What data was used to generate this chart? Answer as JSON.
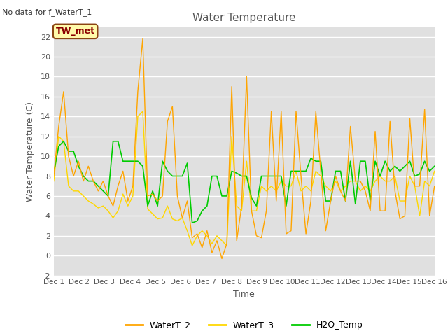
{
  "title": "Water Temperature",
  "xlabel": "Time",
  "ylabel": "Water Temperature (C)",
  "no_data_text": "No data for f_WaterT_1",
  "annotation_text": "TW_met",
  "ylim": [
    -2,
    23
  ],
  "yticks": [
    -2,
    0,
    2,
    4,
    6,
    8,
    10,
    12,
    14,
    16,
    18,
    20,
    22
  ],
  "xtick_labels": [
    "Dec 1",
    "Dec 2",
    "Dec 3",
    "Dec 4",
    "Dec 5",
    "Dec 6",
    "Dec 7",
    "Dec 8",
    "Dec 9",
    "Dec 10",
    "Dec 11",
    "Dec 12",
    "Dec 13",
    "Dec 14",
    "Dec 15",
    "Dec 16"
  ],
  "color_waterT2": "#FFA500",
  "color_waterT3": "#FFD700",
  "color_h2o": "#00CC00",
  "bg_color": "#E0E0E0",
  "legend_entries": [
    "WaterT_2",
    "WaterT_3",
    "H2O_Temp"
  ],
  "waterT2": [
    8.0,
    13.0,
    16.5,
    10.0,
    8.0,
    9.5,
    7.5,
    9.0,
    7.5,
    6.5,
    7.5,
    6.0,
    5.0,
    7.0,
    8.5,
    5.5,
    7.0,
    16.5,
    21.8,
    6.0,
    6.2,
    5.5,
    6.0,
    13.5,
    15.0,
    6.0,
    3.8,
    5.5,
    1.8,
    2.2,
    0.8,
    2.5,
    0.3,
    1.5,
    -0.3,
    1.2,
    17.0,
    1.5,
    5.0,
    18.0,
    4.5,
    2.0,
    1.8,
    4.5,
    14.5,
    5.5,
    14.5,
    2.2,
    2.5,
    14.5,
    8.0,
    2.2,
    5.5,
    14.5,
    8.5,
    2.5,
    5.5,
    8.0,
    6.5,
    5.5,
    13.0,
    7.5,
    7.5,
    6.5,
    4.5,
    12.5,
    4.5,
    4.5,
    13.5,
    6.5,
    3.7,
    4.0,
    13.8,
    7.0,
    7.0,
    14.7,
    4.0,
    7.0
  ],
  "waterT3": [
    7.5,
    12.0,
    11.5,
    7.0,
    6.5,
    6.5,
    6.0,
    5.5,
    5.2,
    4.8,
    5.0,
    4.5,
    3.8,
    4.5,
    6.2,
    5.0,
    6.0,
    14.0,
    14.5,
    4.7,
    4.2,
    3.7,
    3.8,
    5.0,
    3.7,
    3.5,
    3.8,
    2.5,
    1.0,
    2.0,
    2.5,
    2.0,
    1.2,
    2.0,
    1.5,
    1.0,
    12.0,
    5.0,
    4.5,
    9.5,
    4.5,
    4.5,
    7.0,
    6.5,
    7.0,
    6.5,
    7.5,
    7.0,
    7.0,
    8.5,
    6.5,
    7.0,
    6.5,
    8.5,
    8.0,
    7.0,
    6.5,
    7.5,
    6.5,
    7.0,
    7.5,
    7.5,
    6.5,
    7.0,
    6.5,
    7.5,
    8.0,
    7.5,
    7.5,
    8.0,
    5.5,
    5.5,
    8.0,
    7.0,
    4.0,
    7.5,
    7.0,
    8.5
  ],
  "h2oTemp": [
    8.3,
    11.0,
    11.5,
    10.5,
    10.5,
    9.0,
    8.0,
    7.5,
    7.5,
    7.0,
    6.5,
    6.0,
    11.5,
    11.5,
    9.5,
    9.5,
    9.5,
    9.5,
    9.0,
    5.0,
    6.5,
    5.0,
    9.5,
    8.5,
    8.0,
    8.0,
    8.0,
    9.3,
    3.3,
    3.5,
    4.5,
    5.0,
    8.0,
    8.0,
    6.0,
    6.0,
    8.5,
    8.3,
    8.0,
    8.0,
    5.8,
    5.0,
    8.0,
    8.0,
    8.0,
    8.0,
    8.0,
    5.0,
    8.5,
    8.5,
    8.5,
    8.5,
    9.8,
    9.5,
    9.5,
    5.5,
    5.5,
    8.5,
    8.5,
    5.5,
    9.5,
    5.2,
    9.5,
    9.5,
    5.5,
    9.5,
    8.0,
    9.5,
    8.5,
    9.0,
    8.5,
    9.0,
    9.5,
    8.0,
    8.2,
    9.5,
    8.5,
    9.0
  ]
}
